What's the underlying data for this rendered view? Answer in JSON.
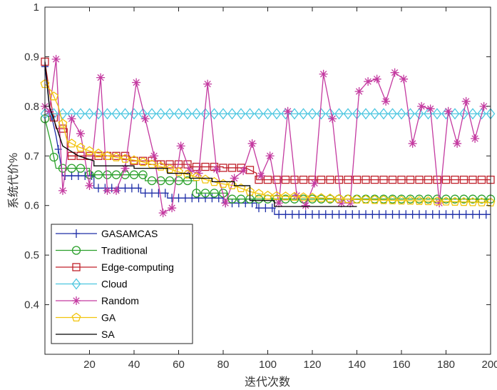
{
  "chart_data": {
    "type": "line",
    "title": "",
    "xlabel": "迭代次数",
    "ylabel": "系统代价%",
    "xlim": [
      0,
      200
    ],
    "ylim": [
      0.3,
      1.0
    ],
    "xticks": [
      20,
      40,
      60,
      80,
      100,
      120,
      140,
      160,
      180,
      200
    ],
    "yticks": [
      0.4,
      0.5,
      0.6,
      0.7,
      0.8,
      0.9,
      1
    ],
    "grid": false,
    "legend_position": "bottom-left",
    "series": [
      {
        "name": "GASAMCAS",
        "color": "#1f2fa8",
        "marker": "plus",
        "marker_every": 3,
        "points": [
          [
            0,
            0.88
          ],
          [
            2,
            0.8
          ],
          [
            5,
            0.74
          ],
          [
            8,
            0.66
          ],
          [
            22,
            0.66
          ],
          [
            22,
            0.635
          ],
          [
            43,
            0.635
          ],
          [
            43,
            0.625
          ],
          [
            55,
            0.625
          ],
          [
            55,
            0.615
          ],
          [
            80,
            0.615
          ],
          [
            80,
            0.605
          ],
          [
            95,
            0.605
          ],
          [
            95,
            0.595
          ],
          [
            103,
            0.595
          ],
          [
            103,
            0.582
          ],
          [
            200,
            0.582
          ]
        ]
      },
      {
        "name": "Traditional",
        "color": "#2aa02a",
        "marker": "circle",
        "marker_every": 4,
        "points": [
          [
            0,
            0.775
          ],
          [
            3,
            0.72
          ],
          [
            5,
            0.675
          ],
          [
            20,
            0.675
          ],
          [
            20,
            0.662
          ],
          [
            45,
            0.662
          ],
          [
            45,
            0.65
          ],
          [
            68,
            0.65
          ],
          [
            68,
            0.625
          ],
          [
            82,
            0.625
          ],
          [
            82,
            0.613
          ],
          [
            200,
            0.613
          ]
        ]
      },
      {
        "name": "Edge-computing",
        "color": "#c0202a",
        "marker": "square",
        "marker_every": 4,
        "points": [
          [
            0,
            0.89
          ],
          [
            3,
            0.8
          ],
          [
            5,
            0.755
          ],
          [
            10,
            0.755
          ],
          [
            10,
            0.7
          ],
          [
            22,
            0.7
          ],
          [
            38,
            0.7
          ],
          [
            38,
            0.69
          ],
          [
            52,
            0.69
          ],
          [
            52,
            0.683
          ],
          [
            65,
            0.683
          ],
          [
            65,
            0.678
          ],
          [
            80,
            0.678
          ],
          [
            80,
            0.676
          ],
          [
            90,
            0.676
          ],
          [
            95,
            0.665
          ],
          [
            95,
            0.652
          ],
          [
            200,
            0.652
          ]
        ]
      },
      {
        "name": "Cloud",
        "color": "#4cc6e0",
        "marker": "diamond",
        "marker_every": 4,
        "points": [
          [
            0,
            0.785
          ],
          [
            200,
            0.785
          ]
        ]
      },
      {
        "name": "Random",
        "color": "#c43aa0",
        "marker": "star",
        "marker_every": 1,
        "points": [
          [
            0,
            0.8
          ],
          [
            2,
            0.79
          ],
          [
            5,
            0.895
          ],
          [
            8,
            0.63
          ],
          [
            12,
            0.775
          ],
          [
            16,
            0.745
          ],
          [
            20,
            0.64
          ],
          [
            25,
            0.858
          ],
          [
            28,
            0.63
          ],
          [
            32,
            0.63
          ],
          [
            36,
            0.675
          ],
          [
            41,
            0.848
          ],
          [
            45,
            0.775
          ],
          [
            49,
            0.7
          ],
          [
            53,
            0.585
          ],
          [
            57,
            0.595
          ],
          [
            61,
            0.72
          ],
          [
            65,
            0.67
          ],
          [
            69,
            0.665
          ],
          [
            73,
            0.845
          ],
          [
            77,
            0.673
          ],
          [
            81,
            0.605
          ],
          [
            85,
            0.655
          ],
          [
            89,
            0.67
          ],
          [
            93,
            0.725
          ],
          [
            97,
            0.66
          ],
          [
            101,
            0.7
          ],
          [
            105,
            0.605
          ],
          [
            109,
            0.79
          ],
          [
            113,
            0.62
          ],
          [
            117,
            0.6
          ],
          [
            121,
            0.645
          ],
          [
            125,
            0.865
          ],
          [
            129,
            0.775
          ],
          [
            133,
            0.605
          ],
          [
            137,
            0.605
          ],
          [
            141,
            0.83
          ],
          [
            145,
            0.85
          ],
          [
            149,
            0.855
          ],
          [
            153,
            0.81
          ],
          [
            157,
            0.868
          ],
          [
            161,
            0.855
          ],
          [
            165,
            0.725
          ],
          [
            169,
            0.8
          ],
          [
            173,
            0.795
          ],
          [
            177,
            0.605
          ],
          [
            181,
            0.79
          ],
          [
            185,
            0.725
          ],
          [
            189,
            0.81
          ],
          [
            193,
            0.735
          ],
          [
            197,
            0.8
          ]
        ]
      },
      {
        "name": "GA",
        "color": "#f2c40c",
        "marker": "pentagon",
        "marker_every": 4,
        "points": [
          [
            0,
            0.845
          ],
          [
            3,
            0.83
          ],
          [
            6,
            0.8
          ],
          [
            10,
            0.73
          ],
          [
            14,
            0.72
          ],
          [
            20,
            0.71
          ],
          [
            28,
            0.7
          ],
          [
            35,
            0.695
          ],
          [
            42,
            0.69
          ],
          [
            48,
            0.683
          ],
          [
            55,
            0.675
          ],
          [
            62,
            0.665
          ],
          [
            70,
            0.655
          ],
          [
            78,
            0.645
          ],
          [
            85,
            0.64
          ],
          [
            92,
            0.628
          ],
          [
            100,
            0.62
          ],
          [
            110,
            0.618
          ],
          [
            125,
            0.615
          ],
          [
            140,
            0.612
          ],
          [
            160,
            0.61
          ],
          [
            180,
            0.608
          ],
          [
            200,
            0.606
          ]
        ]
      },
      {
        "name": "SA",
        "color": "#000000",
        "marker": "none",
        "points": [
          [
            0,
            0.89
          ],
          [
            2,
            0.8
          ],
          [
            5,
            0.76
          ],
          [
            8,
            0.72
          ],
          [
            15,
            0.7
          ],
          [
            22,
            0.69
          ],
          [
            22,
            0.68
          ],
          [
            40,
            0.68
          ],
          [
            40,
            0.675
          ],
          [
            55,
            0.675
          ],
          [
            55,
            0.665
          ],
          [
            65,
            0.665
          ],
          [
            65,
            0.655
          ],
          [
            75,
            0.655
          ],
          [
            75,
            0.648
          ],
          [
            85,
            0.648
          ],
          [
            85,
            0.64
          ],
          [
            92,
            0.64
          ],
          [
            92,
            0.61
          ],
          [
            103,
            0.61
          ],
          [
            103,
            0.598
          ],
          [
            115,
            0.598
          ],
          [
            140,
            0.598
          ]
        ]
      }
    ]
  }
}
